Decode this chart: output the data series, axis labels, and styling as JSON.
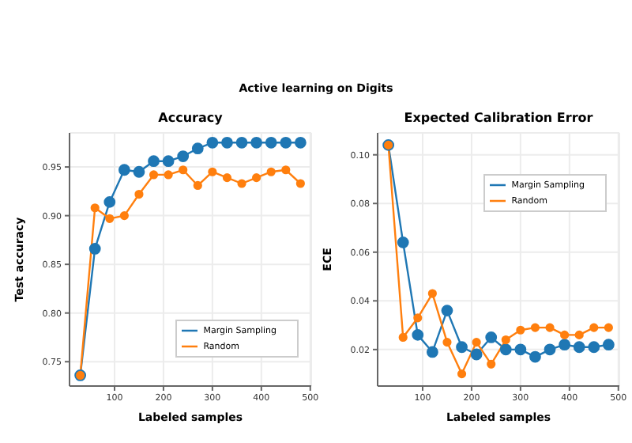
{
  "chart_data": [
    {
      "type": "line",
      "title": "Accuracy",
      "xlabel": "Labeled samples",
      "ylabel": "Test accuracy",
      "x": [
        30,
        60,
        90,
        120,
        150,
        180,
        210,
        240,
        270,
        300,
        330,
        360,
        390,
        420,
        450,
        480
      ],
      "series": [
        {
          "name": "Margin Sampling",
          "color": "#1f77b4",
          "values": [
            0.736,
            0.866,
            0.914,
            0.947,
            0.945,
            0.956,
            0.956,
            0.961,
            0.969,
            0.975,
            0.975,
            0.975,
            0.975,
            0.975,
            0.975,
            0.975
          ]
        },
        {
          "name": "Random",
          "color": "#ff7f0e",
          "values": [
            0.736,
            0.908,
            0.897,
            0.9,
            0.922,
            0.942,
            0.942,
            0.947,
            0.931,
            0.945,
            0.939,
            0.933,
            0.939,
            0.945,
            0.947,
            0.933
          ]
        }
      ],
      "xlim": [
        8,
        502
      ],
      "xticks": [
        100,
        200,
        300,
        400,
        500
      ],
      "ylim": [
        0.725,
        0.985
      ],
      "yticks": [
        {
          "value": 0.75,
          "label": "0.75"
        },
        {
          "value": 0.8,
          "label": "0.80"
        },
        {
          "value": 0.85,
          "label": "0.85"
        },
        {
          "value": 0.9,
          "label": "0.90"
        },
        {
          "value": 0.95,
          "label": "0.95"
        }
      ],
      "grid": true,
      "legend": "bottom right",
      "marker": "circle",
      "annotations": [
        "Active learning on Digits"
      ]
    },
    {
      "type": "line",
      "title": "Expected Calibration Error",
      "xlabel": "Labeled samples",
      "ylabel": "ECE",
      "x": [
        30,
        60,
        90,
        120,
        150,
        180,
        210,
        240,
        270,
        300,
        330,
        360,
        390,
        420,
        450,
        480
      ],
      "series": [
        {
          "name": "Margin Sampling",
          "color": "#1f77b4",
          "values": [
            0.104,
            0.064,
            0.026,
            0.019,
            0.036,
            0.021,
            0.018,
            0.025,
            0.02,
            0.02,
            0.017,
            0.02,
            0.022,
            0.021,
            0.021,
            0.022
          ]
        },
        {
          "name": "Random",
          "color": "#ff7f0e",
          "values": [
            0.104,
            0.025,
            0.033,
            0.043,
            0.023,
            0.01,
            0.023,
            0.014,
            0.024,
            0.028,
            0.029,
            0.029,
            0.026,
            0.026,
            0.029,
            0.029
          ]
        }
      ],
      "xlim": [
        8,
        502
      ],
      "xticks": [
        100,
        200,
        300,
        400,
        500
      ],
      "ylim": [
        0.005,
        0.109
      ],
      "yticks": [
        {
          "value": 0.02,
          "label": "0.02"
        },
        {
          "value": 0.04,
          "label": "0.04"
        },
        {
          "value": 0.06,
          "label": "0.06"
        },
        {
          "value": 0.08,
          "label": "0.08"
        },
        {
          "value": 0.1,
          "label": "0.10"
        }
      ],
      "grid": true,
      "legend": "top right",
      "marker": "circle"
    }
  ]
}
